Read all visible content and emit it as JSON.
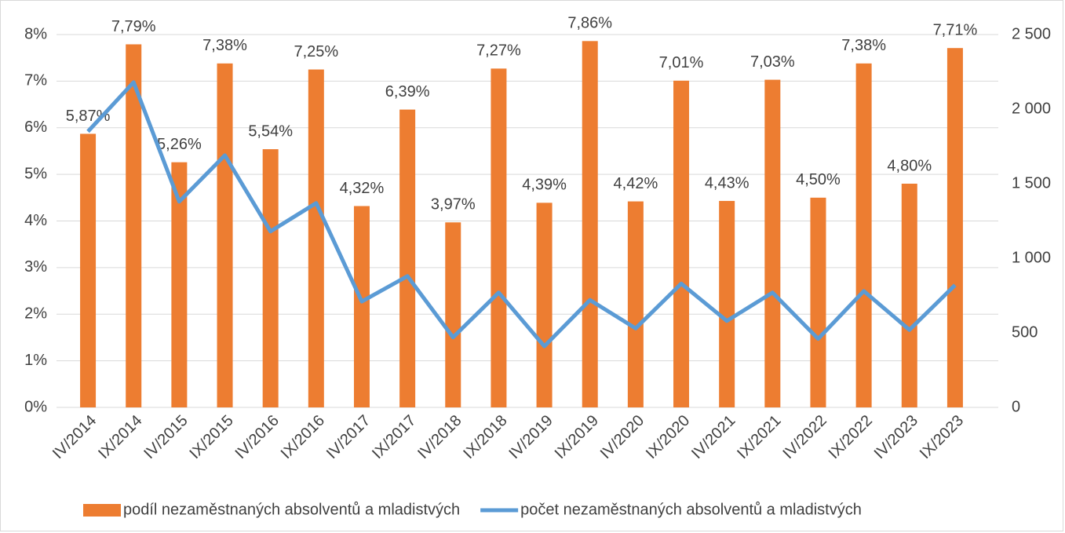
{
  "chart_data": {
    "type": "bar",
    "categories": [
      "IV/2014",
      "IX/2014",
      "IV/2015",
      "IX/2015",
      "IV/2016",
      "IX/2016",
      "IV/2017",
      "IX/2017",
      "IV/2018",
      "IX/2018",
      "IV/2019",
      "IX/2019",
      "IV/2020",
      "IX/2020",
      "IV/2021",
      "IX/2021",
      "IV/2022",
      "IX/2022",
      "IV/2023",
      "IX/2023"
    ],
    "series": [
      {
        "name": "podíl nezaměstnaných absolventů a mladistvých",
        "type": "bar",
        "color": "#ed7d31",
        "values": [
          5.87,
          7.79,
          5.26,
          7.38,
          5.54,
          7.25,
          4.32,
          6.39,
          3.97,
          7.27,
          4.39,
          7.86,
          4.42,
          7.01,
          4.43,
          7.03,
          4.5,
          7.38,
          4.8,
          7.71
        ],
        "value_labels": [
          "5,87%",
          "7,79%",
          "5,26%",
          "7,38%",
          "5,54%",
          "7,25%",
          "4,32%",
          "6,39%",
          "3,97%",
          "7,27%",
          "4,39%",
          "7,86%",
          "4,42%",
          "7,01%",
          "4,43%",
          "7,03%",
          "4,50%",
          "7,38%",
          "4,80%",
          "7,71%"
        ]
      },
      {
        "name": "počet nezaměstnaných absolventů a mladistvých",
        "type": "line",
        "color": "#5b9bd5",
        "axis": "y2",
        "values": [
          1850,
          2180,
          1380,
          1690,
          1180,
          1370,
          710,
          880,
          470,
          770,
          410,
          720,
          530,
          830,
          580,
          770,
          460,
          780,
          520,
          820
        ]
      }
    ],
    "ylim": [
      0,
      8
    ],
    "yticks": [
      {
        "value": 0,
        "label": "0%"
      },
      {
        "value": 1,
        "label": "1%"
      },
      {
        "value": 2,
        "label": "2%"
      },
      {
        "value": 3,
        "label": "3%"
      },
      {
        "value": 4,
        "label": "4%"
      },
      {
        "value": 5,
        "label": "5%"
      },
      {
        "value": 6,
        "label": "6%"
      },
      {
        "value": 7,
        "label": "7%"
      },
      {
        "value": 8,
        "label": "8%"
      }
    ],
    "y2lim": [
      0,
      2500
    ],
    "y2ticks": [
      0,
      500,
      {
        "value": 1000,
        "label": "1 000"
      },
      {
        "value": 1500,
        "label": "1 500"
      },
      {
        "value": 2000,
        "label": "2 000"
      },
      {
        "value": 2500,
        "label": "2 500"
      }
    ],
    "grid": true,
    "legend": "bottom"
  }
}
